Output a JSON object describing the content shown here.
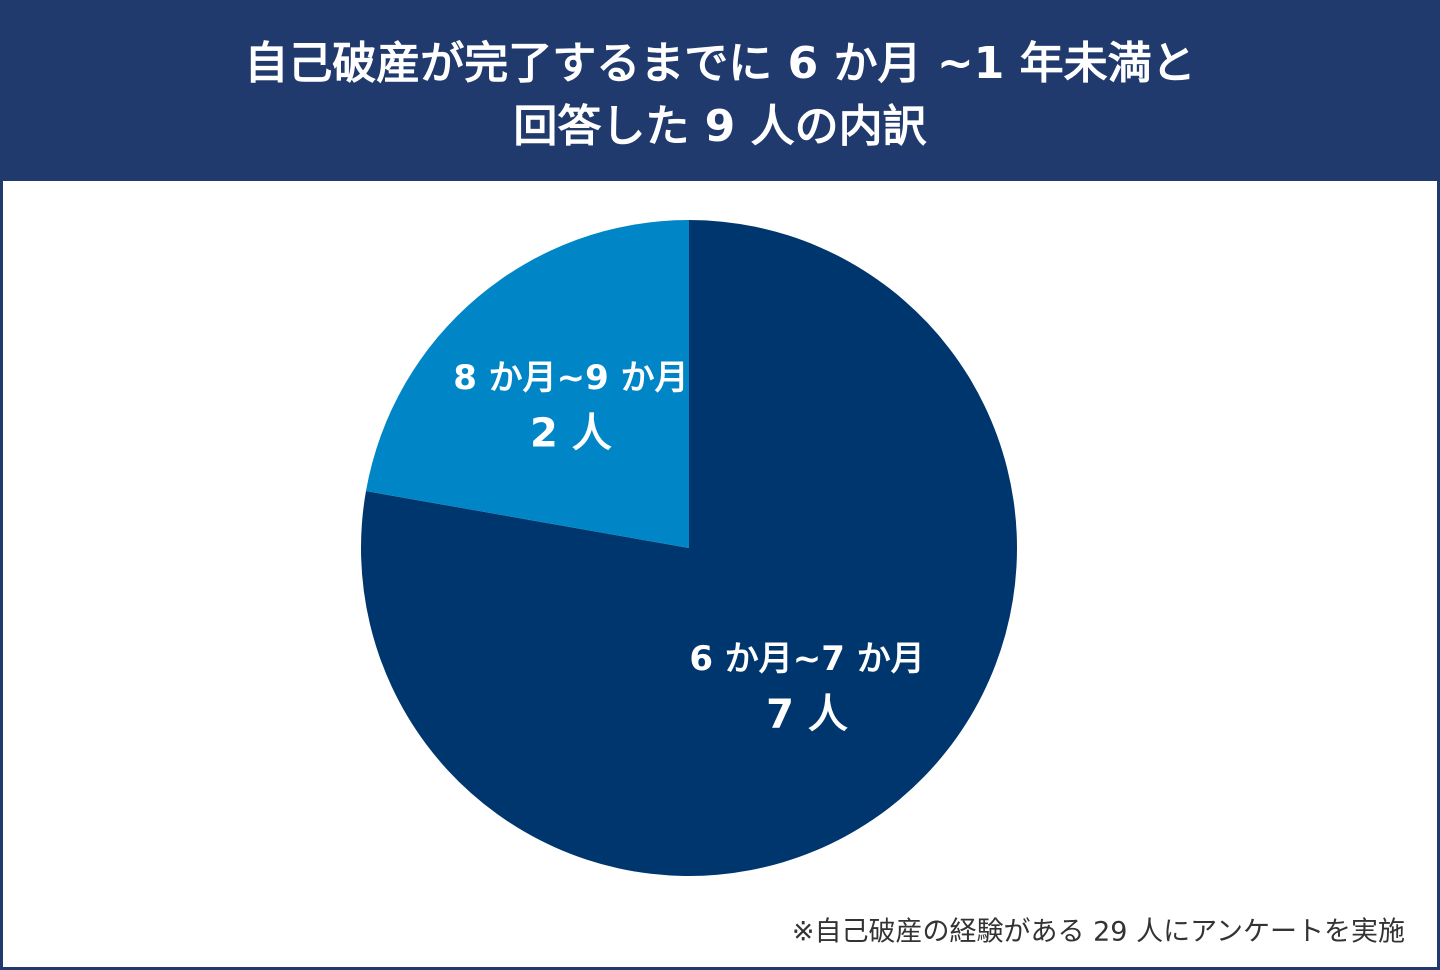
{
  "chart_data": {
    "type": "pie",
    "title": [
      "自己破産が完了するまでに 6 か月 ~1 年未満と",
      "回答した 9 人の内訳"
    ],
    "categories": [
      "6 か月~7 か月",
      "8 か月~9 か月"
    ],
    "values": [
      7,
      2
    ],
    "value_labels": [
      "7 人",
      "2 人"
    ],
    "colors": [
      "#00366e",
      "#0086c6"
    ],
    "note": "※自己破産の経験がある 29 人にアンケートを実施"
  }
}
